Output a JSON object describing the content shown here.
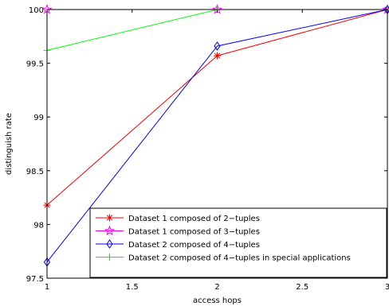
{
  "chart_data": {
    "type": "line",
    "xlabel": "access hops",
    "ylabel": "distinguish rate",
    "xlim": [
      1,
      3
    ],
    "ylim": [
      97.5,
      100
    ],
    "xticks": [
      "1",
      "1.5",
      "2",
      "2.5",
      "3"
    ],
    "yticks": [
      "97.5",
      "98",
      "98.5",
      "99",
      "99.5",
      "100"
    ],
    "grid": false,
    "legend_position": "bottom-right",
    "x": [
      1,
      2,
      3
    ],
    "series": [
      {
        "name": "Dataset 1 composed of 2−tuples",
        "values": [
          98.18,
          99.57,
          100
        ],
        "color": "#ff0000",
        "marker": "asterisk"
      },
      {
        "name": "Dataset 1 composed of 3−tuples",
        "values": [
          100,
          100,
          100
        ],
        "color": "#ff00ff",
        "marker": "star"
      },
      {
        "name": "Dataset 2 composed of 4−tuples",
        "values": [
          97.65,
          99.66,
          100
        ],
        "color": "#0000ff",
        "marker": "diamond"
      },
      {
        "name": "Dataset 2 composed of 4−tuples in special applications",
        "values": [
          99.62,
          100,
          100
        ],
        "color": "#00ff00",
        "marker": "plus"
      }
    ]
  }
}
